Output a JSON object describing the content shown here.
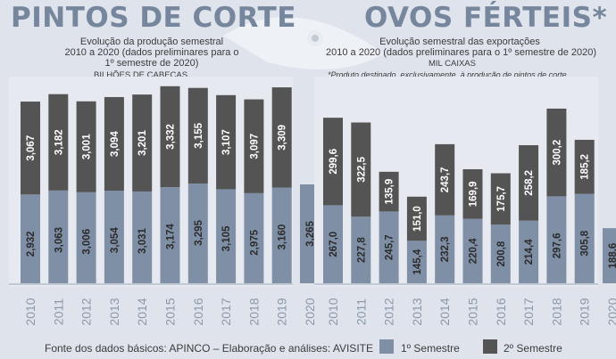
{
  "left": {
    "title": "PINTOS DE CORTE",
    "subtitle_line1": "Evolução da produção semestral",
    "subtitle_line2": "2010 a 2020 (dados preliminares para o",
    "subtitle_line3": "1º semestre de 2020)",
    "unit": "BILHÕES DE CABEÇAS"
  },
  "right": {
    "title": "OVOS FÉRTEIS*",
    "subtitle_line1": "Evolução semestral das exportações",
    "subtitle_line2": "2010 a 2020 (dados preliminares para o 1º semestre de 2020)",
    "unit": "MIL CAIXAS",
    "note": "*Produto destinado, exclusivamente, à produção de pintos de corte"
  },
  "footer": "Fonte dos dados básicos: APINCO – Elaboração e análises: AVISITE",
  "colors": {
    "first_semester": "#7f8fa6",
    "second_semester": "#545454",
    "background": "#dfe4ec"
  },
  "chart_data": [
    {
      "type": "bar",
      "stacked": true,
      "title": "PINTOS DE CORTE",
      "ylabel": "BILHÕES DE CABEÇAS",
      "categories": [
        "2010",
        "2011",
        "2012",
        "2013",
        "2014",
        "2015",
        "2016",
        "2017",
        "2018",
        "2019",
        "2020"
      ],
      "series": [
        {
          "name": "1º Semestre",
          "values": [
            2.932,
            3.063,
            3.006,
            3.054,
            3.031,
            3.174,
            3.295,
            3.105,
            2.975,
            3.16,
            3.265
          ],
          "labels": [
            "2,932",
            "3,063",
            "3,006",
            "3,054",
            "3,031",
            "3,174",
            "3,295",
            "3,105",
            "2,975",
            "3,160",
            "3,265"
          ]
        },
        {
          "name": "2º Semestre",
          "values": [
            3.067,
            3.182,
            3.001,
            3.094,
            3.201,
            3.332,
            3.155,
            3.107,
            3.097,
            3.309,
            null
          ],
          "labels": [
            "3,067",
            "3,182",
            "3,001",
            "3,094",
            "3,201",
            "3,332",
            "3,155",
            "3,107",
            "3,097",
            "3,309",
            ""
          ]
        }
      ],
      "ylim": [
        0,
        6.6
      ]
    },
    {
      "type": "bar",
      "stacked": true,
      "title": "OVOS FÉRTEIS*",
      "ylabel": "MIL CAIXAS",
      "categories": [
        "2010",
        "2011",
        "2012",
        "2013",
        "2014",
        "2015",
        "2016",
        "2017",
        "2018",
        "2019",
        "2020"
      ],
      "series": [
        {
          "name": "1º Semestre",
          "values": [
            267.0,
            227.8,
            245.7,
            145.4,
            232.3,
            220.4,
            200.8,
            214.4,
            297.6,
            305.8,
            188.6
          ],
          "labels": [
            "267,0",
            "227,8",
            "245,7",
            "145,4",
            "232,3",
            "220,4",
            "200,8",
            "214,4",
            "297,6",
            "305,8",
            "188,6"
          ]
        },
        {
          "name": "2º Semestre",
          "values": [
            299.6,
            322.5,
            135.9,
            151.0,
            243.7,
            169.9,
            175.7,
            258.2,
            300.2,
            185.2,
            null
          ],
          "labels": [
            "299,6",
            "322,5",
            "135,9",
            "151,0",
            "243,7",
            "169,9",
            "175,7",
            "258,2",
            "300,2",
            "185,2",
            ""
          ]
        }
      ],
      "ylim": [
        0,
        700
      ]
    }
  ],
  "legend": {
    "first": "1º Semestre",
    "second": "2º Semestre"
  }
}
